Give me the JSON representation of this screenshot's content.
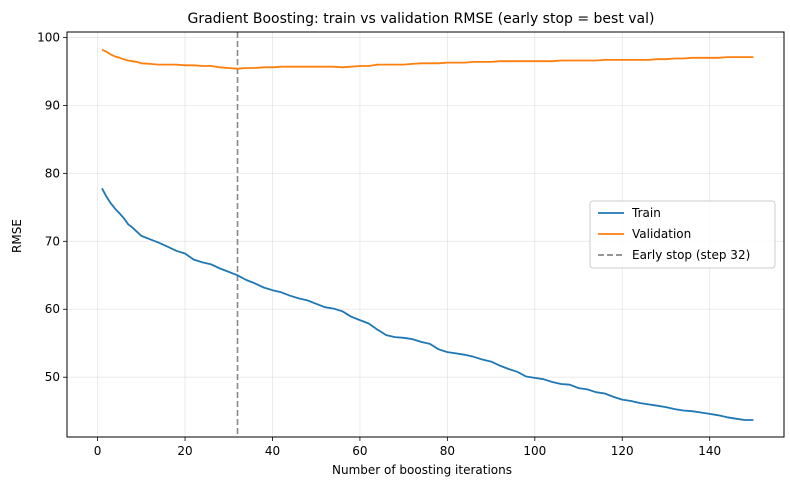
{
  "chart_data": {
    "type": "line",
    "title": "Gradient Boosting: train vs validation RMSE (early stop = best val)",
    "xlabel": "Number of boosting iterations",
    "ylabel": "RMSE",
    "xlim": [
      -7,
      157
    ],
    "ylim": [
      41.2,
      100.8
    ],
    "xticks": [
      0,
      20,
      40,
      60,
      80,
      100,
      120,
      140
    ],
    "yticks": [
      50,
      60,
      70,
      80,
      90,
      100
    ],
    "grid": true,
    "legend_position": "center-right",
    "series": [
      {
        "name": "Train",
        "color": "#1f77b4",
        "x": [
          1,
          2,
          3,
          4,
          5,
          6,
          7,
          8,
          9,
          10,
          12,
          14,
          16,
          18,
          20,
          22,
          24,
          26,
          28,
          30,
          32,
          34,
          36,
          38,
          40,
          42,
          44,
          46,
          48,
          50,
          52,
          54,
          56,
          58,
          60,
          62,
          64,
          66,
          68,
          70,
          72,
          74,
          76,
          78,
          80,
          82,
          84,
          86,
          88,
          90,
          92,
          94,
          96,
          98,
          100,
          102,
          104,
          106,
          108,
          110,
          112,
          114,
          116,
          118,
          120,
          122,
          124,
          126,
          128,
          130,
          132,
          134,
          136,
          138,
          140,
          142,
          144,
          146,
          148,
          150
        ],
        "values": [
          77.8,
          76.6,
          75.6,
          74.8,
          74.1,
          73.4,
          72.5,
          72.0,
          71.4,
          70.8,
          70.3,
          69.8,
          69.2,
          68.6,
          68.2,
          67.3,
          66.9,
          66.6,
          66.0,
          65.5,
          65.0,
          64.3,
          63.8,
          63.2,
          62.8,
          62.5,
          62.0,
          61.6,
          61.3,
          60.8,
          60.3,
          60.1,
          59.7,
          58.9,
          58.4,
          57.9,
          57.0,
          56.2,
          55.9,
          55.8,
          55.6,
          55.2,
          54.9,
          54.1,
          53.7,
          53.5,
          53.3,
          53.0,
          52.6,
          52.3,
          51.7,
          51.2,
          50.8,
          50.1,
          49.9,
          49.7,
          49.3,
          49.0,
          48.9,
          48.4,
          48.2,
          47.8,
          47.6,
          47.1,
          46.7,
          46.5,
          46.2,
          46.0,
          45.8,
          45.6,
          45.3,
          45.1,
          45.0,
          44.8,
          44.6,
          44.4,
          44.1,
          43.9,
          43.7,
          43.7
        ]
      },
      {
        "name": "Validation",
        "color": "#ff7f0e",
        "x": [
          1,
          2,
          3,
          4,
          5,
          6,
          7,
          8,
          9,
          10,
          12,
          14,
          16,
          18,
          20,
          22,
          24,
          26,
          28,
          30,
          32,
          34,
          36,
          38,
          40,
          42,
          44,
          46,
          48,
          50,
          52,
          54,
          56,
          58,
          60,
          62,
          64,
          66,
          68,
          70,
          72,
          74,
          76,
          78,
          80,
          82,
          84,
          86,
          88,
          90,
          92,
          94,
          96,
          98,
          100,
          102,
          104,
          106,
          108,
          110,
          112,
          114,
          116,
          118,
          120,
          122,
          124,
          126,
          128,
          130,
          132,
          134,
          136,
          138,
          140,
          142,
          144,
          146,
          148,
          150
        ],
        "values": [
          98.2,
          97.9,
          97.5,
          97.2,
          97.0,
          96.8,
          96.6,
          96.5,
          96.4,
          96.2,
          96.1,
          96.0,
          96.0,
          96.0,
          95.9,
          95.9,
          95.8,
          95.8,
          95.6,
          95.5,
          95.4,
          95.5,
          95.5,
          95.6,
          95.6,
          95.7,
          95.7,
          95.7,
          95.7,
          95.7,
          95.7,
          95.7,
          95.6,
          95.7,
          95.8,
          95.8,
          96.0,
          96.0,
          96.0,
          96.0,
          96.1,
          96.2,
          96.2,
          96.2,
          96.3,
          96.3,
          96.3,
          96.4,
          96.4,
          96.4,
          96.5,
          96.5,
          96.5,
          96.5,
          96.5,
          96.5,
          96.5,
          96.6,
          96.6,
          96.6,
          96.6,
          96.6,
          96.7,
          96.7,
          96.7,
          96.7,
          96.7,
          96.7,
          96.8,
          96.8,
          96.9,
          96.9,
          97.0,
          97.0,
          97.0,
          97.0,
          97.1,
          97.1,
          97.1,
          97.1
        ]
      }
    ],
    "vline": {
      "name": "Early stop (step 32)",
      "x": 32,
      "color": "#888888",
      "style": "dashed"
    }
  }
}
